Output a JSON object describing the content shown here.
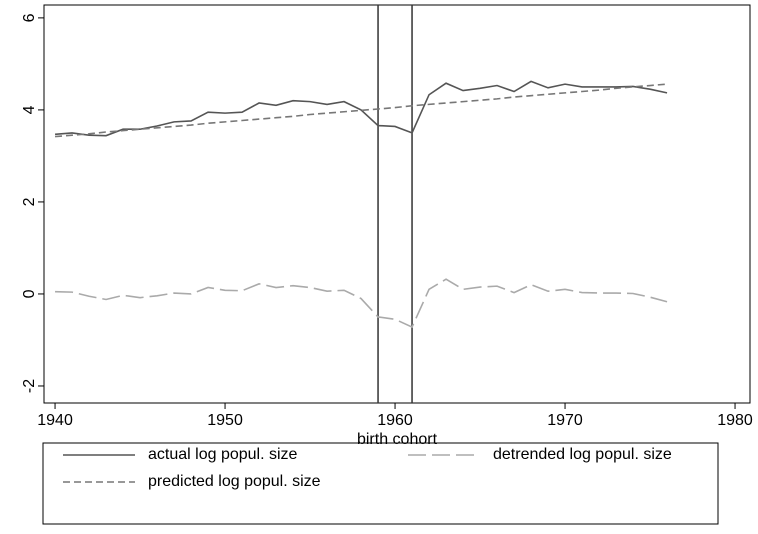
{
  "chart_data": {
    "type": "line",
    "xlabel": "birth cohort",
    "x": [
      1940,
      1941,
      1942,
      1943,
      1944,
      1945,
      1946,
      1947,
      1948,
      1949,
      1950,
      1951,
      1952,
      1953,
      1954,
      1955,
      1956,
      1957,
      1958,
      1959,
      1960,
      1961,
      1962,
      1963,
      1964,
      1965,
      1966,
      1967,
      1968,
      1969,
      1970,
      1971,
      1972,
      1973,
      1974,
      1975,
      1976
    ],
    "series": [
      {
        "name": "actual log popul. size",
        "color": "#555555",
        "dash": "solid",
        "values": [
          3.47,
          3.5,
          3.45,
          3.44,
          3.58,
          3.58,
          3.65,
          3.74,
          3.76,
          3.95,
          3.93,
          3.95,
          4.15,
          4.1,
          4.2,
          4.18,
          4.12,
          4.18,
          4.0,
          3.66,
          3.64,
          3.5,
          4.33,
          4.58,
          4.42,
          4.47,
          4.53,
          4.4,
          4.62,
          4.48,
          4.56,
          4.5,
          4.5,
          4.5,
          4.51,
          4.45,
          4.37
        ]
      },
      {
        "name": "detrended log popul. size",
        "color": "#aaaaaa",
        "dash": "long",
        "values": [
          0.05,
          0.04,
          -0.05,
          -0.12,
          -0.03,
          -0.08,
          -0.04,
          0.02,
          0.0,
          0.14,
          0.08,
          0.07,
          0.22,
          0.14,
          0.18,
          0.14,
          0.06,
          0.08,
          -0.1,
          -0.5,
          -0.55,
          -0.72,
          0.1,
          0.32,
          0.1,
          0.15,
          0.17,
          0.03,
          0.2,
          0.06,
          0.1,
          0.03,
          0.02,
          0.02,
          0.01,
          -0.07,
          -0.17
        ]
      },
      {
        "name": "predicted log popul. size",
        "color": "#777777",
        "dash": "short",
        "values": [
          3.42,
          3.45,
          3.48,
          3.52,
          3.55,
          3.58,
          3.61,
          3.64,
          3.67,
          3.71,
          3.74,
          3.77,
          3.8,
          3.83,
          3.86,
          3.9,
          3.93,
          3.96,
          3.99,
          4.02,
          4.05,
          4.09,
          4.12,
          4.15,
          4.18,
          4.21,
          4.24,
          4.28,
          4.31,
          4.34,
          4.37,
          4.4,
          4.43,
          4.47,
          4.5,
          4.53,
          4.56
        ]
      }
    ],
    "vlines": [
      1959,
      1961
    ],
    "xlim": [
      1939.35,
      1980.88
    ],
    "xticks": [
      1940,
      1950,
      1960,
      1970,
      1980
    ],
    "ylim": [
      -2.37,
      6.28
    ],
    "yticks": [
      -2,
      0,
      2,
      4,
      6
    ],
    "legend": "bottom"
  }
}
